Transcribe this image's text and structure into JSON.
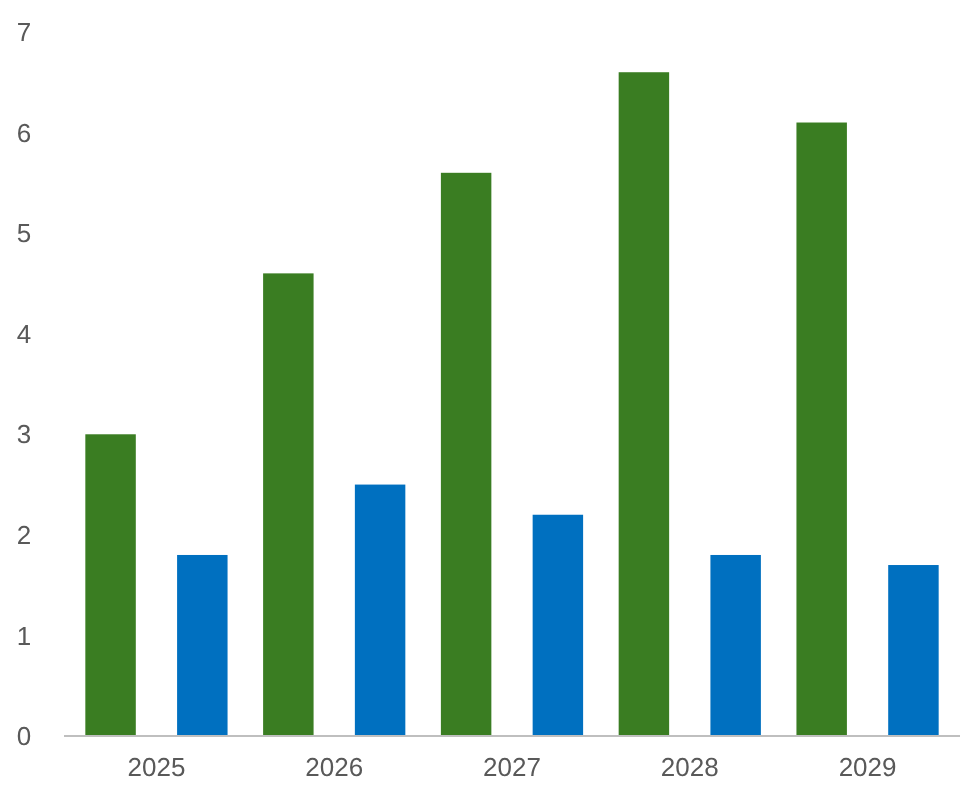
{
  "chart_data": {
    "type": "bar",
    "categories": [
      "2025",
      "2026",
      "2027",
      "2028",
      "2029"
    ],
    "series": [
      {
        "color": "#3a7d22",
        "values": [
          3.0,
          4.6,
          5.6,
          6.6,
          6.1
        ]
      },
      {
        "color": "#0070c0",
        "values": [
          1.8,
          2.5,
          2.2,
          1.8,
          1.7
        ]
      }
    ],
    "ylim": [
      0,
      7
    ],
    "yticks": [
      0,
      1,
      2,
      3,
      4,
      5,
      6,
      7
    ],
    "grid": false,
    "legend": false
  }
}
